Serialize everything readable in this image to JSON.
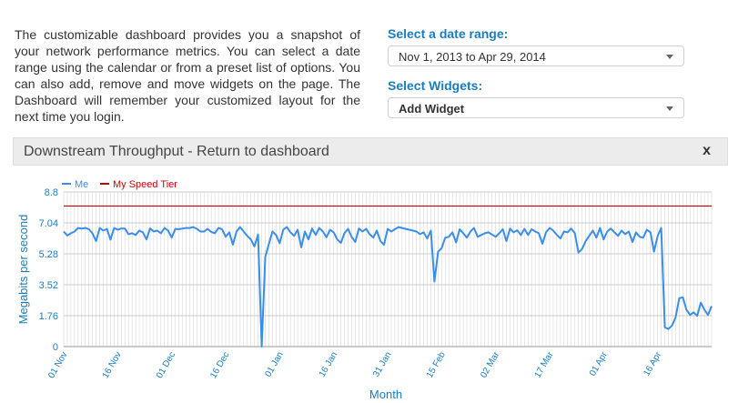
{
  "intro": {
    "text": "The customizable dashboard provides you a snapshot of your network performance metrics. You can select a date range using the calendar or from a preset list of options. You can also add, remove and move widgets on the page. The Dashboard will remember your customized layout for the next time you login."
  },
  "date_range": {
    "label": "Select a date range:",
    "value": "Nov 1, 2013 to Apr 29, 2014"
  },
  "widgets": {
    "label": "Select Widgets:",
    "value": "Add Widget"
  },
  "panel": {
    "title": "Downstream Throughput - Return to dashboard",
    "close_label": "x"
  },
  "colors": {
    "accent": "#1a7dbf",
    "series_me": "#3b8ee8",
    "series_tier": "#cc0000"
  },
  "chart_data": {
    "type": "line",
    "xlabel": "Month",
    "ylabel": "Megabits per second",
    "ylim": [
      0,
      8.8
    ],
    "yticks": [
      "0",
      "1.76",
      "3.52",
      "5.28",
      "7.04",
      "8.8"
    ],
    "xticks": [
      "01 Nov",
      "16 Nov",
      "01 Dec",
      "16 Dec",
      "01 Jan",
      "16 Jan",
      "31 Jan",
      "15 Feb",
      "02 Mar",
      "17 Mar",
      "01 Apr",
      "16 Apr"
    ],
    "grid": true,
    "legend_position": "top-left",
    "series": [
      {
        "name": "Me",
        "values": [
          6.55,
          6.32,
          6.45,
          6.55,
          6.75,
          6.72,
          6.75,
          6.68,
          6.45,
          6.0,
          6.75,
          6.6,
          6.7,
          6.08,
          6.75,
          6.65,
          6.72,
          6.72,
          6.4,
          6.45,
          6.35,
          6.6,
          6.5,
          6.1,
          6.72,
          6.55,
          6.6,
          6.45,
          6.75,
          6.6,
          6.2,
          6.7,
          6.68,
          6.72,
          6.75,
          6.75,
          6.8,
          6.7,
          6.55,
          6.55,
          6.7,
          6.52,
          6.45,
          6.75,
          6.68,
          6.25,
          6.5,
          5.8,
          6.55,
          6.8,
          6.55,
          6.3,
          6.1,
          5.7,
          6.38,
          0.0,
          5.1,
          5.85,
          6.55,
          6.35,
          5.88,
          6.65,
          6.8,
          6.5,
          6.3,
          6.65,
          5.65,
          6.55,
          6.1,
          6.72,
          6.35,
          6.75,
          6.55,
          6.22,
          6.65,
          6.5,
          6.1,
          5.9,
          6.45,
          6.7,
          6.25,
          5.95,
          6.72,
          6.55,
          6.7,
          6.4,
          6.2,
          6.6,
          6.0,
          5.8,
          6.7,
          6.55,
          6.68,
          6.8,
          6.75,
          6.7,
          6.65,
          6.6,
          6.55,
          6.4,
          6.5,
          6.15,
          6.6,
          3.7,
          5.4,
          5.6,
          6.2,
          6.25,
          6.5,
          5.92,
          6.68,
          6.45,
          6.2,
          6.55,
          6.75,
          6.25,
          6.35,
          6.45,
          6.5,
          6.38,
          6.25,
          6.45,
          6.68,
          6.0,
          6.72,
          6.5,
          6.62,
          6.35,
          6.7,
          6.35,
          6.68,
          6.55,
          6.45,
          5.85,
          6.5,
          6.75,
          6.6,
          6.35,
          6.15,
          6.55,
          6.5,
          6.72,
          6.45,
          5.35,
          5.55,
          6.0,
          6.3,
          6.6,
          6.2,
          6.75,
          6.1,
          6.55,
          6.72,
          6.5,
          6.3,
          6.6,
          6.4,
          6.55,
          5.95,
          6.5,
          6.25,
          6.2,
          6.65,
          6.5,
          5.4,
          6.3,
          6.75,
          1.1,
          1.0,
          1.2,
          1.65,
          2.75,
          2.8,
          2.1,
          1.8,
          1.95,
          1.75,
          2.5,
          2.1,
          1.8,
          2.3
        ]
      },
      {
        "name": "My Speed Tier",
        "values": [
          8.0,
          8.0
        ]
      }
    ]
  }
}
